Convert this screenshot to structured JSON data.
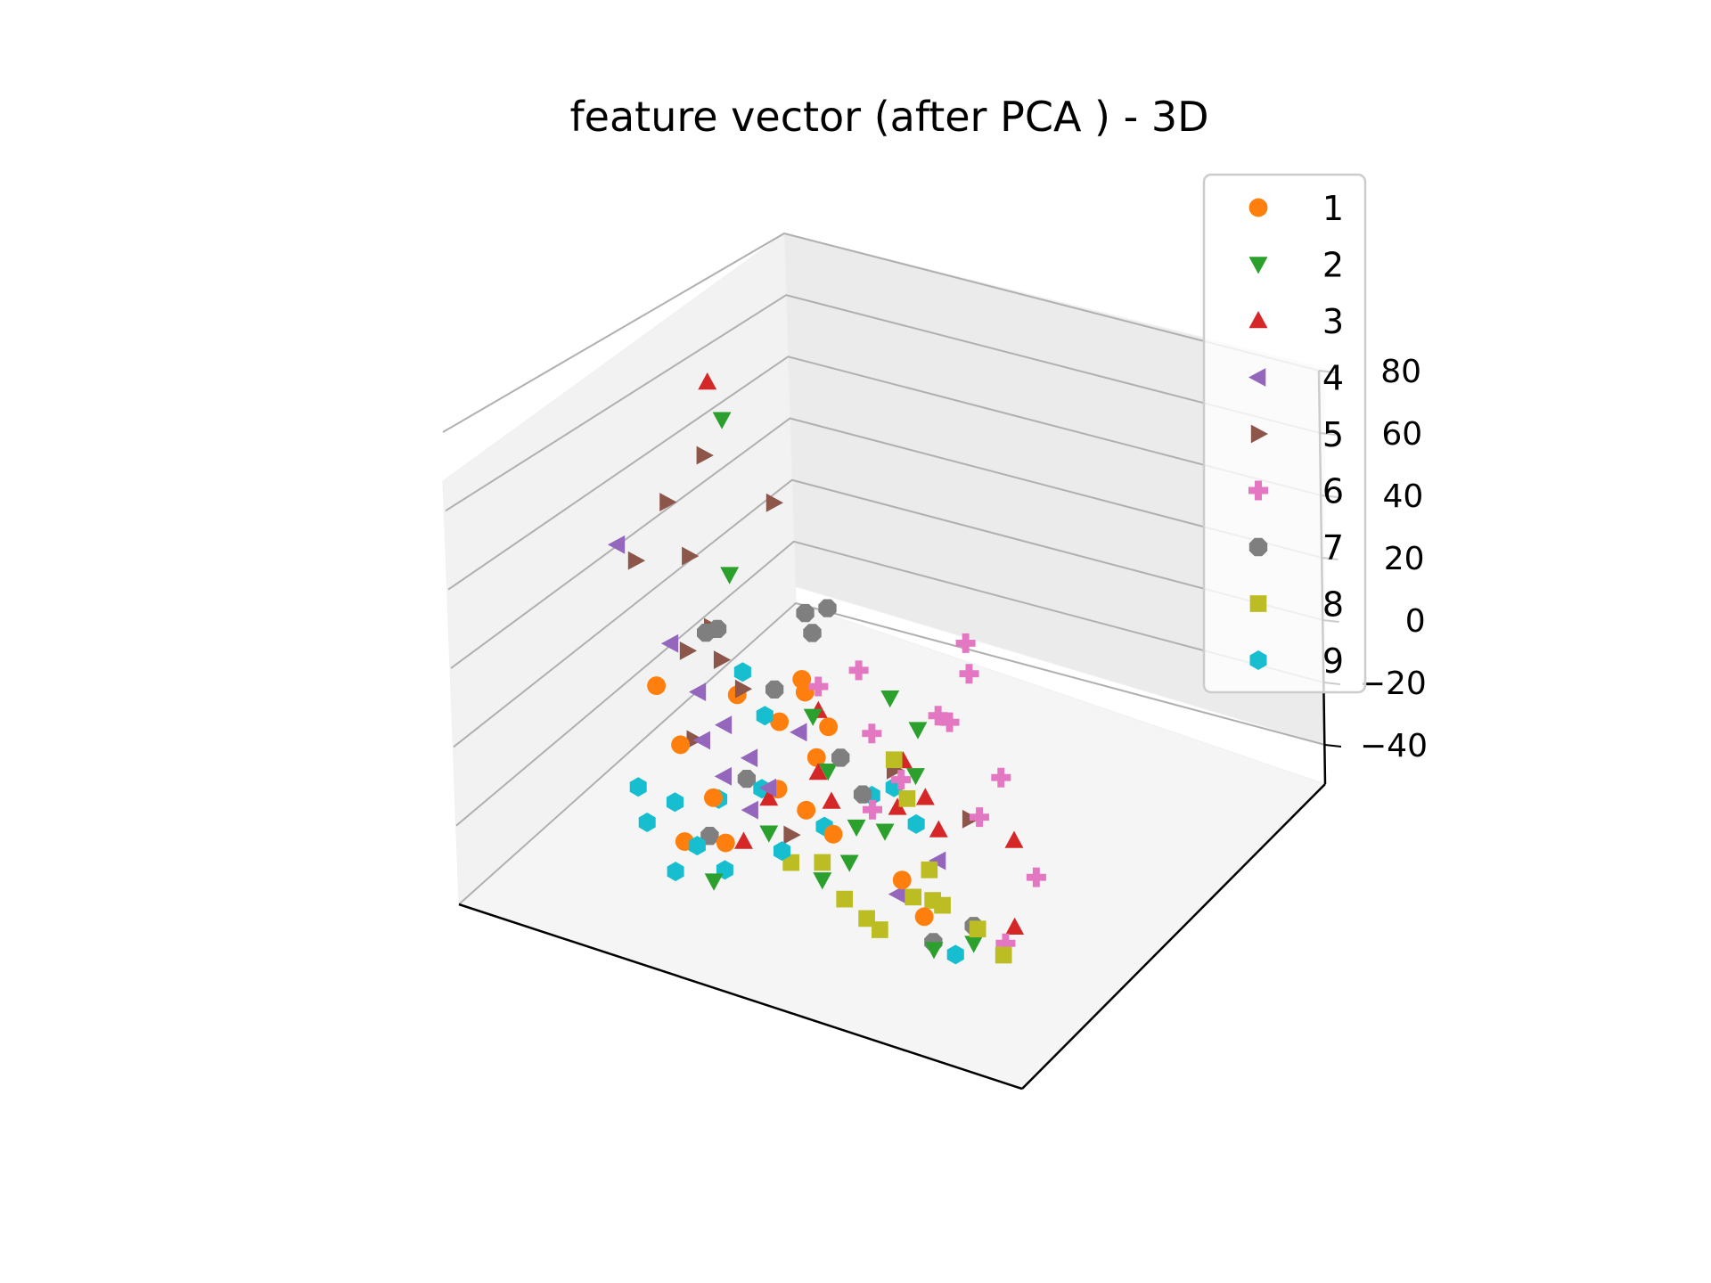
{
  "chart_data": {
    "type": "scatter",
    "projection": "3d",
    "title": "feature vector (after PCA ) - 3D",
    "xlabel": "",
    "ylabel": "",
    "zlabel": "",
    "zlim": [
      -40,
      80
    ],
    "z_ticks": [
      "−40",
      "−20",
      "0",
      "20",
      "40",
      "60",
      "80"
    ],
    "x_ticks_visible": false,
    "y_ticks_visible": false,
    "grid": true,
    "legend_position": "top-right",
    "series": [
      {
        "name": "1",
        "color": "#ff7f0e",
        "marker": "circle",
        "points": [
          [
            -12,
            30,
            5
          ],
          [
            -8,
            18,
            10
          ],
          [
            -20,
            22,
            0
          ],
          [
            -15,
            28,
            -8
          ],
          [
            -10,
            10,
            -15
          ],
          [
            -5,
            14,
            -5
          ],
          [
            -25,
            8,
            -10
          ],
          [
            -30,
            12,
            2
          ],
          [
            0,
            6,
            -20
          ],
          [
            -18,
            2,
            -18
          ],
          [
            -2,
            -2,
            -10
          ],
          [
            20,
            -25,
            -5
          ],
          [
            25,
            -30,
            -10
          ],
          [
            -6,
            24,
            -2
          ],
          [
            -14,
            -5,
            -25
          ],
          [
            -22,
            0,
            -32
          ]
        ]
      },
      {
        "name": "2",
        "color": "#2ca02c",
        "marker": "triangle-down",
        "points": [
          [
            -30,
            48,
            60
          ],
          [
            -25,
            35,
            25
          ],
          [
            5,
            20,
            15
          ],
          [
            8,
            25,
            5
          ],
          [
            -2,
            10,
            -5
          ],
          [
            4,
            5,
            -15
          ],
          [
            10,
            0,
            -10
          ],
          [
            30,
            -20,
            -20
          ],
          [
            28,
            -35,
            -15
          ],
          [
            -10,
            5,
            -25
          ],
          [
            0,
            0,
            -30
          ],
          [
            -15,
            -8,
            -35
          ],
          [
            2,
            8,
            -28
          ],
          [
            12,
            10,
            2
          ],
          [
            -5,
            12,
            8
          ]
        ]
      },
      {
        "name": "3",
        "color": "#d62728",
        "marker": "triangle-up",
        "points": [
          [
            -30,
            40,
            75
          ],
          [
            -5,
            15,
            8
          ],
          [
            10,
            10,
            5
          ],
          [
            15,
            5,
            0
          ],
          [
            -3,
            8,
            -5
          ],
          [
            12,
            0,
            -2
          ],
          [
            35,
            -15,
            10
          ],
          [
            38,
            -25,
            -8
          ],
          [
            -10,
            5,
            -15
          ],
          [
            -12,
            -2,
            -25
          ],
          [
            0,
            5,
            -10
          ],
          [
            18,
            2,
            -6
          ]
        ]
      },
      {
        "name": "4",
        "color": "#9467bd",
        "marker": "triangle-left",
        "points": [
          [
            -40,
            25,
            30
          ],
          [
            -30,
            20,
            10
          ],
          [
            -25,
            18,
            0
          ],
          [
            -20,
            15,
            -5
          ],
          [
            -15,
            12,
            -10
          ],
          [
            -18,
            8,
            -15
          ],
          [
            -10,
            5,
            -12
          ],
          [
            -8,
            15,
            0
          ],
          [
            20,
            -5,
            -10
          ],
          [
            15,
            -10,
            -20
          ],
          [
            -22,
            10,
            -8
          ],
          [
            -12,
            2,
            -18
          ]
        ]
      },
      {
        "name": "5",
        "color": "#8c564b",
        "marker": "triangle-right",
        "points": [
          [
            -32,
            45,
            50
          ],
          [
            -20,
            42,
            45
          ],
          [
            -35,
            35,
            40
          ],
          [
            -30,
            30,
            30
          ],
          [
            -38,
            28,
            25
          ],
          [
            -25,
            25,
            15
          ],
          [
            -22,
            20,
            10
          ],
          [
            -18,
            18,
            5
          ],
          [
            -28,
            22,
            8
          ],
          [
            -24,
            12,
            -10
          ],
          [
            10,
            5,
            5
          ],
          [
            25,
            -5,
            5
          ],
          [
            -5,
            0,
            -20
          ]
        ]
      },
      {
        "name": "6",
        "color": "#e377c2",
        "marker": "plus",
        "points": [
          [
            20,
            10,
            45
          ],
          [
            22,
            5,
            40
          ],
          [
            0,
            20,
            20
          ],
          [
            15,
            12,
            20
          ],
          [
            18,
            8,
            22
          ],
          [
            30,
            -5,
            20
          ],
          [
            28,
            -10,
            10
          ],
          [
            40,
            -20,
            5
          ],
          [
            -5,
            15,
            15
          ],
          [
            5,
            10,
            10
          ],
          [
            12,
            2,
            5
          ],
          [
            38,
            -30,
            -10
          ],
          [
            8,
            0,
            -5
          ]
        ]
      },
      {
        "name": "7",
        "color": "#7f7f7f",
        "marker": "octagon",
        "points": [
          [
            -5,
            20,
            35
          ],
          [
            -10,
            25,
            28
          ],
          [
            -8,
            22,
            25
          ],
          [
            -22,
            18,
            20
          ],
          [
            -25,
            22,
            15
          ],
          [
            -12,
            15,
            10
          ],
          [
            0,
            10,
            0
          ],
          [
            5,
            5,
            -5
          ],
          [
            -15,
            10,
            -15
          ],
          [
            30,
            -20,
            -15
          ],
          [
            25,
            -25,
            -20
          ],
          [
            -18,
            0,
            -28
          ]
        ]
      },
      {
        "name": "8",
        "color": "#bcbd22",
        "marker": "square",
        "points": [
          [
            10,
            5,
            8
          ],
          [
            15,
            -5,
            5
          ],
          [
            20,
            -10,
            -10
          ],
          [
            22,
            -15,
            -15
          ],
          [
            18,
            -12,
            -18
          ],
          [
            25,
            -20,
            -12
          ],
          [
            35,
            -35,
            -5
          ],
          [
            40,
            -38,
            -8
          ],
          [
            0,
            0,
            -25
          ],
          [
            5,
            -5,
            -30
          ],
          [
            -5,
            0,
            -28
          ],
          [
            10,
            -10,
            -30
          ],
          [
            15,
            -20,
            -25
          ]
        ]
      },
      {
        "name": "9",
        "color": "#17becf",
        "marker": "hexagon",
        "points": [
          [
            -20,
            25,
            5
          ],
          [
            -15,
            20,
            -2
          ],
          [
            5,
            10,
            -8
          ],
          [
            -18,
            5,
            -20
          ],
          [
            -25,
            5,
            -25
          ],
          [
            -28,
            0,
            -30
          ],
          [
            -15,
            -2,
            -35
          ],
          [
            -20,
            0,
            -32
          ],
          [
            -22,
            -5,
            -38
          ],
          [
            10,
            5,
            0
          ],
          [
            15,
            0,
            -5
          ],
          [
            30,
            -30,
            -18
          ],
          [
            -5,
            -5,
            -22
          ],
          [
            -12,
            8,
            -15
          ],
          [
            -2,
            8,
            -20
          ],
          [
            -30,
            2,
            -22
          ]
        ]
      }
    ]
  }
}
